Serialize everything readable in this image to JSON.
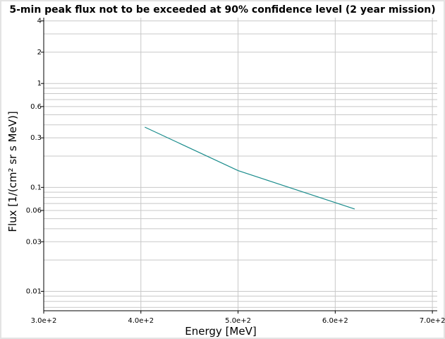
{
  "chart_data": {
    "type": "line",
    "title": "5-min peak flux not to be exceeded at 90% confidence level (2 year mission)",
    "xlabel": "Energy [MeV]",
    "ylabel": "Flux [1/(cm² sr s MeV)]",
    "x_scale": "linear",
    "y_scale": "log",
    "xlim": [
      300,
      705
    ],
    "ylim": [
      0.0065,
      4.3
    ],
    "x_ticks": [
      {
        "value": 300,
        "label": "3.0e+2"
      },
      {
        "value": 400,
        "label": "4.0e+2"
      },
      {
        "value": 500,
        "label": "5.0e+2"
      },
      {
        "value": 600,
        "label": "6.0e+2"
      },
      {
        "value": 700,
        "label": "7.0e+2"
      }
    ],
    "y_ticks": [
      {
        "value": 4,
        "label": "4"
      },
      {
        "value": 2,
        "label": "2"
      },
      {
        "value": 1,
        "label": "1"
      },
      {
        "value": 0.6,
        "label": "0.6"
      },
      {
        "value": 0.3,
        "label": "0.3"
      },
      {
        "value": 0.1,
        "label": "0.1"
      },
      {
        "value": 0.06,
        "label": "0.06"
      },
      {
        "value": 0.03,
        "label": "0.03"
      },
      {
        "value": 0.01,
        "label": "0.01"
      }
    ],
    "grid": true,
    "series": [
      {
        "color": "#1a8c8c",
        "x": [
          404,
          500,
          620
        ],
        "y": [
          0.38,
          0.145,
          0.062
        ]
      }
    ]
  }
}
